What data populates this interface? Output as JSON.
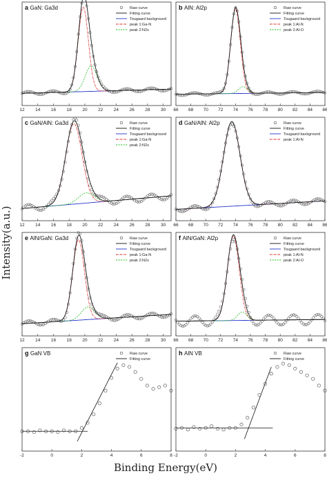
{
  "figure": {
    "ylabel": "Intensity(a.u.)",
    "xlabel": "Binding Energy(eV)"
  },
  "colors": {
    "raw": "#444444",
    "fit": "#111111",
    "background": "#2233cc",
    "peak1": "#dd2222",
    "peak2": "#22bb22"
  },
  "chart_data": [
    {
      "id": "a",
      "type": "scatter",
      "letter": "a",
      "title": "GaN: Ga3d",
      "xlim": [
        12,
        31
      ],
      "xticks": [
        12,
        14,
        16,
        18,
        20,
        22,
        24,
        26,
        28,
        30
      ],
      "legend": [
        "Raw curve",
        "Fitting curve",
        "Tougaard background",
        "peak 1:Ga-N",
        "peak 2:N2s"
      ],
      "peaks": [
        {
          "center": 19.8,
          "width": 0.65,
          "height": 1.0
        },
        {
          "center": 20.8,
          "width": 0.75,
          "height": 0.3
        }
      ],
      "background": [
        0.03,
        0.08
      ],
      "scatter_amp": 0.02
    },
    {
      "id": "b",
      "type": "scatter",
      "letter": "b",
      "title": "AlN: Al2p",
      "xlim": [
        66,
        86
      ],
      "xticks": [
        66,
        68,
        70,
        72,
        74,
        76,
        78,
        80,
        82,
        84,
        86
      ],
      "legend": [
        "Raw curve",
        "Fitting curve",
        "Tougaard background",
        "peak 1:Al-N",
        "peak 2:Al-O"
      ],
      "peaks": [
        {
          "center": 74.0,
          "width": 0.65,
          "height": 1.0
        },
        {
          "center": 75.0,
          "width": 0.6,
          "height": 0.08
        }
      ],
      "background": [
        0.02,
        0.04
      ],
      "scatter_amp": 0.015
    },
    {
      "id": "c",
      "type": "scatter",
      "letter": "c",
      "title": "GaN/AlN: Ga3d",
      "xlim": [
        12,
        31
      ],
      "xticks": [
        12,
        14,
        16,
        18,
        20,
        22,
        24,
        26,
        28,
        30
      ],
      "legend": [
        "Raw curve",
        "Fitting curve",
        "Tougaard background",
        "peak 1:Ga-N",
        "peak 2:N2s"
      ],
      "peaks": [
        {
          "center": 18.6,
          "width": 1.05,
          "height": 0.95
        },
        {
          "center": 20.2,
          "width": 1.0,
          "height": 0.12
        }
      ],
      "background": [
        0.03,
        0.18
      ],
      "scatter_amp": 0.04
    },
    {
      "id": "d",
      "type": "scatter",
      "letter": "d",
      "title": "GaN/AlN: Al2p",
      "xlim": [
        66,
        86
      ],
      "xticks": [
        66,
        68,
        70,
        72,
        74,
        76,
        78,
        80,
        82,
        84,
        86
      ],
      "legend": [
        "Raw curve",
        "Fitting curve",
        "Tougaard background",
        "peak 1:Al-N"
      ],
      "peaks": [
        {
          "center": 73.5,
          "width": 1.1,
          "height": 1.0
        }
      ],
      "background": [
        0.02,
        0.12
      ],
      "scatter_amp": 0.03
    },
    {
      "id": "e",
      "type": "scatter",
      "letter": "e",
      "title": "AlN/GaN: Ga3d",
      "xlim": [
        12,
        31
      ],
      "xticks": [
        12,
        14,
        16,
        18,
        20,
        22,
        24,
        26,
        28,
        30
      ],
      "legend": [
        "Raw curve",
        "Fitting curve",
        "Tougaard background",
        "peak 1:Ga-N",
        "peak 2:N2s"
      ],
      "peaks": [
        {
          "center": 19.2,
          "width": 0.75,
          "height": 0.95
        },
        {
          "center": 20.4,
          "width": 0.85,
          "height": 0.15
        }
      ],
      "background": [
        0.03,
        0.14
      ],
      "scatter_amp": 0.03
    },
    {
      "id": "f",
      "type": "scatter",
      "letter": "f",
      "title": "AlN/GaN: Al2p",
      "xlim": [
        66,
        86
      ],
      "xticks": [
        66,
        68,
        70,
        72,
        74,
        76,
        78,
        80,
        82,
        84,
        86
      ],
      "legend": [
        "Raw curve",
        "Fitting curve",
        "Tougaard background",
        "peak 1:Al-N",
        "peak 2:Al-O"
      ],
      "peaks": [
        {
          "center": 73.7,
          "width": 0.8,
          "height": 1.0
        },
        {
          "center": 74.9,
          "width": 0.6,
          "height": 0.1
        }
      ],
      "background": [
        0.06,
        0.08
      ],
      "scatter_amp": 0.06
    },
    {
      "id": "g",
      "type": "scatter",
      "letter": "g",
      "title": "GaN VB",
      "xlim": [
        -2,
        8
      ],
      "xticks": [
        -2,
        0,
        2,
        4,
        6,
        8
      ],
      "legend": [
        "Raw curve",
        "Fitting curve"
      ],
      "raw": [
        [
          -2,
          0.12
        ],
        [
          -1.6,
          0.12
        ],
        [
          -1.2,
          0.11
        ],
        [
          -0.8,
          0.13
        ],
        [
          -0.4,
          0.12
        ],
        [
          0,
          0.12
        ],
        [
          0.4,
          0.11
        ],
        [
          0.8,
          0.13
        ],
        [
          1.2,
          0.12
        ],
        [
          1.6,
          0.12
        ],
        [
          2.0,
          0.16
        ],
        [
          2.4,
          0.22
        ],
        [
          2.8,
          0.32
        ],
        [
          3.2,
          0.45
        ],
        [
          3.6,
          0.6
        ],
        [
          4.0,
          0.75
        ],
        [
          4.4,
          0.86
        ],
        [
          4.8,
          0.9
        ],
        [
          5.2,
          0.88
        ],
        [
          5.6,
          0.82
        ],
        [
          6.0,
          0.74
        ],
        [
          6.4,
          0.66
        ],
        [
          6.8,
          0.62
        ],
        [
          7.2,
          0.64
        ],
        [
          7.6,
          0.66
        ],
        [
          8.0,
          0.6
        ]
      ],
      "fit_lines": [
        [
          [
            -2,
            0.12
          ],
          [
            2.4,
            0.12
          ]
        ],
        [
          [
            1.7,
            0.0
          ],
          [
            4.4,
            0.93
          ]
        ]
      ]
    },
    {
      "id": "h",
      "type": "scatter",
      "letter": "h",
      "title": "AlN VB",
      "xlim": [
        -2,
        8
      ],
      "xticks": [
        -2,
        0,
        2,
        4,
        6,
        8
      ],
      "legend": [
        "Raw curve",
        "Fitting curve"
      ],
      "raw": [
        [
          -2,
          0.15
        ],
        [
          -1.6,
          0.16
        ],
        [
          -1.2,
          0.14
        ],
        [
          -0.8,
          0.17
        ],
        [
          -0.4,
          0.15
        ],
        [
          0,
          0.16
        ],
        [
          0.4,
          0.18
        ],
        [
          0.8,
          0.15
        ],
        [
          1.2,
          0.14
        ],
        [
          1.6,
          0.16
        ],
        [
          2.0,
          0.16
        ],
        [
          2.4,
          0.2
        ],
        [
          2.8,
          0.28
        ],
        [
          3.2,
          0.4
        ],
        [
          3.6,
          0.55
        ],
        [
          4.0,
          0.68
        ],
        [
          4.4,
          0.8
        ],
        [
          4.8,
          0.88
        ],
        [
          5.2,
          0.92
        ],
        [
          5.6,
          0.9
        ],
        [
          6.0,
          0.86
        ],
        [
          6.4,
          0.82
        ],
        [
          6.8,
          0.78
        ],
        [
          7.2,
          0.74
        ],
        [
          7.6,
          0.66
        ],
        [
          8.0,
          0.6
        ]
      ],
      "fit_lines": [
        [
          [
            -2,
            0.16
          ],
          [
            4.5,
            0.16
          ]
        ],
        [
          [
            2.6,
            0.03
          ],
          [
            4.4,
            0.88
          ]
        ]
      ]
    }
  ]
}
